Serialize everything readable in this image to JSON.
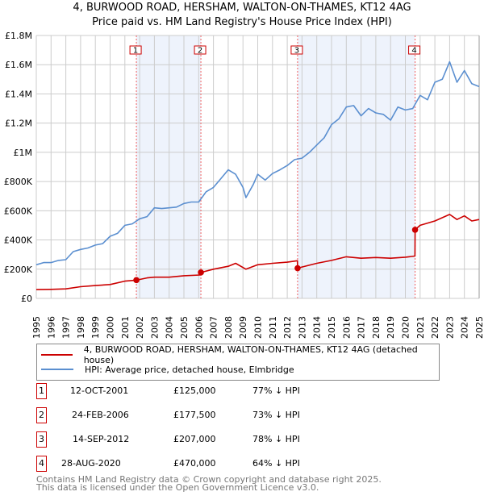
{
  "title_line1": "4, BURWOOD ROAD, HERSHAM, WALTON-ON-THAMES, KT12 4AG",
  "title_line2": "Price paid vs. HM Land Registry's House Price Index (HPI)",
  "colors": {
    "property": "#cc0000",
    "hpi": "#5b8fd0",
    "shade": "#eef3fc",
    "grid": "#cccccc"
  },
  "legend": {
    "property": "4, BURWOOD ROAD, HERSHAM, WALTON-ON-THAMES, KT12 4AG (detached house)",
    "hpi": "HPI: Average price, detached house, Elmbridge"
  },
  "sales": [
    {
      "num": "1",
      "date": "12-OCT-2001",
      "price": "£125,000",
      "hpi_diff": "77% ↓ HPI"
    },
    {
      "num": "2",
      "date": "24-FEB-2006",
      "price": "£177,500",
      "hpi_diff": "73% ↓ HPI"
    },
    {
      "num": "3",
      "date": "14-SEP-2012",
      "price": "£207,000",
      "hpi_diff": "78% ↓ HPI"
    },
    {
      "num": "4",
      "date": "28-AUG-2020",
      "price": "£470,000",
      "hpi_diff": "64% ↓ HPI"
    }
  ],
  "footer": {
    "line1": "Contains HM Land Registry data © Crown copyright and database right 2025.",
    "line2": "This data is licensed under the Open Government Licence v3.0."
  },
  "chart_data": {
    "type": "line",
    "xlim": [
      1995,
      2025
    ],
    "ylim": [
      0,
      1800000
    ],
    "yticks": [
      0,
      200000,
      400000,
      600000,
      800000,
      1000000,
      1200000,
      1400000,
      1600000,
      1800000
    ],
    "ytick_labels": [
      "£0",
      "£200K",
      "£400K",
      "£600K",
      "£800K",
      "£1M",
      "£1.2M",
      "£1.4M",
      "£1.6M",
      "£1.8M"
    ],
    "xtick_labels": [
      "1995",
      "1996",
      "1997",
      "1998",
      "1999",
      "2000",
      "2001",
      "2002",
      "2003",
      "2004",
      "2005",
      "2006",
      "2007",
      "2008",
      "2009",
      "2010",
      "2011",
      "2012",
      "2013",
      "2014",
      "2015",
      "2016",
      "2017",
      "2018",
      "2019",
      "2020",
      "2021",
      "2022",
      "2023",
      "2024",
      "2025"
    ],
    "grid": true,
    "sale_markers": [
      {
        "label": "1",
        "x": 2001.78,
        "y": 125000
      },
      {
        "label": "2",
        "x": 2006.15,
        "y": 177500
      },
      {
        "label": "3",
        "x": 2012.7,
        "y": 207000
      },
      {
        "label": "4",
        "x": 2020.66,
        "y": 470000
      }
    ],
    "shaded_ranges": [
      [
        2001.78,
        2006.15
      ],
      [
        2012.7,
        2020.66
      ]
    ],
    "series": [
      {
        "name": "property",
        "x": [
          1995,
          1996,
          1997,
          1998,
          1999,
          2000,
          2001,
          2001.78,
          2002.5,
          2003,
          2004,
          2005,
          2006.1,
          2006.15,
          2007,
          2008,
          2008.5,
          2009.2,
          2010,
          2011,
          2012,
          2012.69,
          2012.7,
          2014,
          2015,
          2016,
          2017,
          2018,
          2019,
          2020,
          2020.65,
          2020.66,
          2021,
          2022,
          2023,
          2023.5,
          2024,
          2024.5,
          2025
        ],
        "y": [
          60000,
          62000,
          65000,
          80000,
          88000,
          95000,
          118000,
          125000,
          140000,
          145000,
          145000,
          155000,
          160000,
          177500,
          200000,
          220000,
          240000,
          200000,
          230000,
          240000,
          248000,
          258000,
          207000,
          240000,
          260000,
          285000,
          275000,
          280000,
          275000,
          282000,
          290000,
          470000,
          500000,
          530000,
          575000,
          540000,
          565000,
          530000,
          540000
        ]
      },
      {
        "name": "hpi",
        "x": [
          1995,
          1995.5,
          1996,
          1996.5,
          1997,
          1997.5,
          1998,
          1998.5,
          1999,
          1999.5,
          2000,
          2000.5,
          2001,
          2001.5,
          2002,
          2002.5,
          2003,
          2003.5,
          2004,
          2004.5,
          2005,
          2005.5,
          2006,
          2006.5,
          2007,
          2007.5,
          2008,
          2008.5,
          2009,
          2009.2,
          2009.7,
          2010,
          2010.5,
          2011,
          2011.5,
          2012,
          2012.5,
          2013,
          2013.5,
          2014,
          2014.5,
          2015,
          2015.5,
          2016,
          2016.5,
          2017,
          2017.5,
          2018,
          2018.5,
          2019,
          2019.5,
          2020,
          2020.5,
          2021,
          2021.5,
          2022,
          2022.5,
          2023,
          2023.5,
          2024,
          2024.5,
          2025
        ],
        "y": [
          230000,
          245000,
          245000,
          260000,
          265000,
          320000,
          335000,
          345000,
          365000,
          375000,
          425000,
          445000,
          500000,
          510000,
          545000,
          560000,
          620000,
          615000,
          620000,
          625000,
          650000,
          660000,
          660000,
          730000,
          760000,
          820000,
          880000,
          850000,
          760000,
          690000,
          780000,
          850000,
          810000,
          855000,
          880000,
          910000,
          950000,
          960000,
          1000000,
          1050000,
          1100000,
          1190000,
          1230000,
          1310000,
          1320000,
          1250000,
          1300000,
          1270000,
          1260000,
          1220000,
          1310000,
          1290000,
          1300000,
          1390000,
          1360000,
          1480000,
          1500000,
          1620000,
          1480000,
          1560000,
          1470000,
          1450000
        ]
      }
    ]
  }
}
